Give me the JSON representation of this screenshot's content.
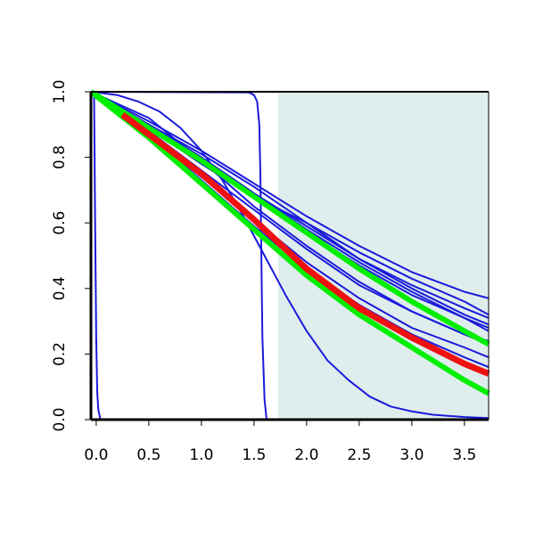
{
  "chart_data": {
    "type": "line",
    "title": "",
    "xlabel": "",
    "ylabel": "",
    "xlim": [
      -0.05,
      3.73
    ],
    "ylim": [
      0.0,
      1.0
    ],
    "x_ticks": [
      "0.0",
      "0.5",
      "1.0",
      "1.5",
      "2.0",
      "2.5",
      "3.0",
      "3.5"
    ],
    "y_ticks": [
      "0.0",
      "0.2",
      "0.4",
      "0.6",
      "0.8",
      "1.0"
    ],
    "shaded_region": {
      "x_from": 1.73,
      "x_to": 3.73,
      "color": "#dfeded"
    },
    "colors": {
      "blue": "#1a1adc",
      "green": "#00ee00",
      "red": "#ee1111",
      "axis": "#000000"
    },
    "series": [
      {
        "color": "#1a1adc",
        "width": 2,
        "points": [
          [
            -0.02,
            1.0
          ],
          [
            -0.01,
            0.6
          ],
          [
            0.0,
            0.25
          ],
          [
            0.01,
            0.08
          ],
          [
            0.02,
            0.03
          ],
          [
            0.04,
            0.0
          ],
          [
            3.73,
            0.0
          ]
        ]
      },
      {
        "color": "#1a1adc",
        "width": 2,
        "points": [
          [
            -0.05,
            1.0
          ],
          [
            1.45,
            0.998
          ],
          [
            1.5,
            0.99
          ],
          [
            1.53,
            0.97
          ],
          [
            1.55,
            0.9
          ],
          [
            1.56,
            0.75
          ],
          [
            1.57,
            0.5
          ],
          [
            1.58,
            0.25
          ],
          [
            1.6,
            0.06
          ],
          [
            1.62,
            0.0
          ],
          [
            3.73,
            0.0
          ]
        ]
      },
      {
        "color": "#1a1adc",
        "width": 2,
        "points": [
          [
            -0.05,
            1.0
          ],
          [
            0.2,
            0.99
          ],
          [
            0.4,
            0.97
          ],
          [
            0.6,
            0.94
          ],
          [
            0.8,
            0.89
          ],
          [
            1.0,
            0.82
          ],
          [
            1.2,
            0.73
          ],
          [
            1.4,
            0.62
          ],
          [
            1.6,
            0.5
          ],
          [
            1.8,
            0.38
          ],
          [
            2.0,
            0.27
          ],
          [
            2.2,
            0.18
          ],
          [
            2.4,
            0.12
          ],
          [
            2.6,
            0.07
          ],
          [
            2.8,
            0.04
          ],
          [
            3.0,
            0.025
          ],
          [
            3.2,
            0.015
          ],
          [
            3.5,
            0.008
          ],
          [
            3.73,
            0.005
          ]
        ]
      },
      {
        "color": "#1a1adc",
        "width": 2,
        "points": [
          [
            -0.05,
            1.0
          ],
          [
            0.5,
            0.92
          ],
          [
            1.0,
            0.79
          ],
          [
            1.5,
            0.65
          ],
          [
            2.0,
            0.53
          ],
          [
            2.5,
            0.42
          ],
          [
            3.0,
            0.33
          ],
          [
            3.5,
            0.26
          ],
          [
            3.73,
            0.23
          ]
        ]
      },
      {
        "color": "#1a1adc",
        "width": 2,
        "points": [
          [
            -0.05,
            1.0
          ],
          [
            0.5,
            0.9
          ],
          [
            1.0,
            0.8
          ],
          [
            1.5,
            0.69
          ],
          [
            2.0,
            0.58
          ],
          [
            2.5,
            0.48
          ],
          [
            3.0,
            0.39
          ],
          [
            3.5,
            0.31
          ],
          [
            3.73,
            0.27
          ]
        ]
      },
      {
        "color": "#1a1adc",
        "width": 2,
        "points": [
          [
            -0.05,
            1.0
          ],
          [
            0.5,
            0.89
          ],
          [
            1.0,
            0.78
          ],
          [
            1.5,
            0.68
          ],
          [
            2.0,
            0.6
          ],
          [
            2.5,
            0.51
          ],
          [
            3.0,
            0.43
          ],
          [
            3.5,
            0.36
          ],
          [
            3.73,
            0.32
          ]
        ]
      },
      {
        "color": "#1a1adc",
        "width": 2,
        "points": [
          [
            -0.05,
            1.0
          ],
          [
            0.5,
            0.91
          ],
          [
            1.0,
            0.82
          ],
          [
            1.5,
            0.72
          ],
          [
            2.0,
            0.62
          ],
          [
            2.5,
            0.53
          ],
          [
            3.0,
            0.45
          ],
          [
            3.5,
            0.39
          ],
          [
            3.73,
            0.37
          ]
        ]
      },
      {
        "color": "#1a1adc",
        "width": 2,
        "points": [
          [
            -0.05,
            1.0
          ],
          [
            0.5,
            0.9
          ],
          [
            1.0,
            0.81
          ],
          [
            1.5,
            0.71
          ],
          [
            2.0,
            0.6
          ],
          [
            2.5,
            0.49
          ],
          [
            3.0,
            0.4
          ],
          [
            3.5,
            0.32
          ],
          [
            3.73,
            0.29
          ]
        ]
      },
      {
        "color": "#1a1adc",
        "width": 2,
        "points": [
          [
            -0.05,
            1.0
          ],
          [
            0.5,
            0.88
          ],
          [
            1.0,
            0.76
          ],
          [
            1.5,
            0.64
          ],
          [
            2.0,
            0.52
          ],
          [
            2.5,
            0.41
          ],
          [
            3.0,
            0.33
          ],
          [
            3.5,
            0.26
          ],
          [
            3.73,
            0.24
          ]
        ]
      },
      {
        "color": "#1a1adc",
        "width": 2,
        "points": [
          [
            -0.05,
            1.0
          ],
          [
            0.5,
            0.89
          ],
          [
            1.0,
            0.79
          ],
          [
            1.5,
            0.68
          ],
          [
            2.0,
            0.57
          ],
          [
            2.5,
            0.47
          ],
          [
            3.0,
            0.38
          ],
          [
            3.5,
            0.31
          ],
          [
            3.73,
            0.28
          ]
        ]
      },
      {
        "color": "#1a1adc",
        "width": 2,
        "points": [
          [
            -0.05,
            1.0
          ],
          [
            0.5,
            0.87
          ],
          [
            1.0,
            0.74
          ],
          [
            1.5,
            0.61
          ],
          [
            2.0,
            0.48
          ],
          [
            2.5,
            0.37
          ],
          [
            3.0,
            0.28
          ],
          [
            3.5,
            0.22
          ],
          [
            3.73,
            0.19
          ]
        ]
      },
      {
        "color": "#1a1adc",
        "width": 2,
        "points": [
          [
            -0.05,
            1.0
          ],
          [
            0.5,
            0.87
          ],
          [
            1.0,
            0.73
          ],
          [
            1.5,
            0.59
          ],
          [
            2.0,
            0.46
          ],
          [
            2.5,
            0.35
          ],
          [
            3.0,
            0.26
          ],
          [
            3.5,
            0.19
          ],
          [
            3.73,
            0.16
          ]
        ]
      },
      {
        "color": "#1a1adc",
        "width": 2,
        "points": [
          [
            -0.05,
            1.0
          ],
          [
            0.5,
            0.9
          ],
          [
            1.0,
            0.8
          ],
          [
            1.5,
            0.69
          ],
          [
            2.0,
            0.59
          ],
          [
            2.5,
            0.49
          ],
          [
            3.0,
            0.41
          ],
          [
            3.5,
            0.34
          ],
          [
            3.73,
            0.31
          ]
        ]
      },
      {
        "color": "#00ee00",
        "width": 6,
        "points": [
          [
            -0.05,
            1.0
          ],
          [
            0.5,
            0.86
          ],
          [
            1.0,
            0.72
          ],
          [
            1.5,
            0.58
          ],
          [
            2.0,
            0.44
          ],
          [
            2.5,
            0.32
          ],
          [
            3.0,
            0.22
          ],
          [
            3.5,
            0.12
          ],
          [
            3.73,
            0.08
          ]
        ]
      },
      {
        "color": "#00ee00",
        "width": 6,
        "points": [
          [
            -0.05,
            1.0
          ],
          [
            0.5,
            0.89
          ],
          [
            1.0,
            0.79
          ],
          [
            1.5,
            0.68
          ],
          [
            2.0,
            0.57
          ],
          [
            2.5,
            0.46
          ],
          [
            3.0,
            0.36
          ],
          [
            3.5,
            0.27
          ],
          [
            3.73,
            0.23
          ]
        ]
      },
      {
        "color": "#ee1111",
        "width": 7,
        "points": [
          [
            0.25,
            0.93
          ],
          [
            0.5,
            0.87
          ],
          [
            1.0,
            0.75
          ],
          [
            1.5,
            0.61
          ],
          [
            2.0,
            0.46
          ],
          [
            2.5,
            0.34
          ],
          [
            3.0,
            0.25
          ],
          [
            3.5,
            0.17
          ],
          [
            3.73,
            0.14
          ]
        ]
      }
    ]
  }
}
